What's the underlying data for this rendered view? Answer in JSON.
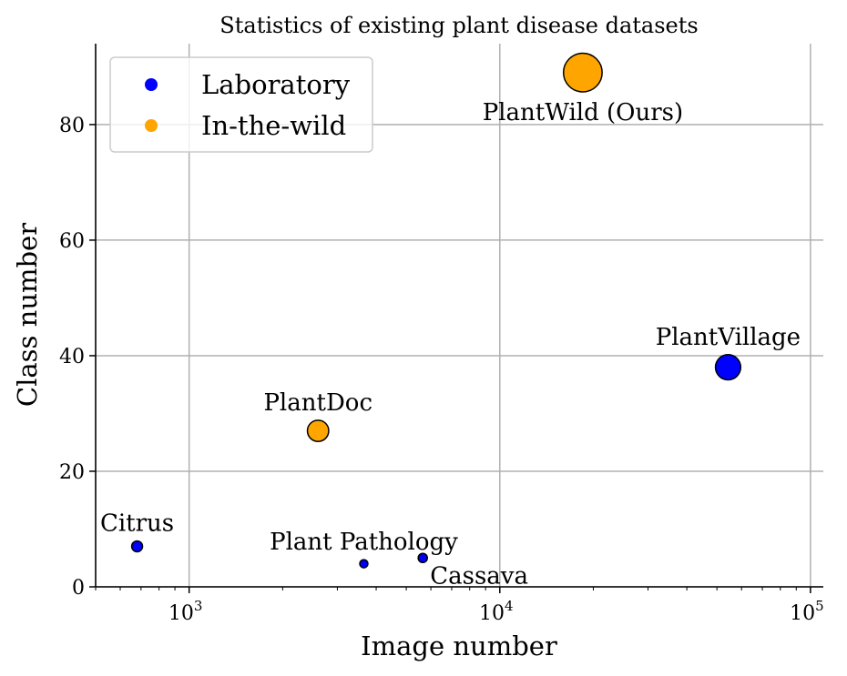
{
  "chart_data": {
    "type": "scatter",
    "title": "Statistics of existing plant disease datasets",
    "xlabel": "Image number",
    "ylabel": "Class number",
    "xscale": "log",
    "xlim": [
      500,
      110000
    ],
    "ylim": [
      0,
      94
    ],
    "xticks": [
      {
        "value": 1000,
        "base": "10",
        "exp": "3"
      },
      {
        "value": 10000,
        "base": "10",
        "exp": "4"
      },
      {
        "value": 100000,
        "base": "10",
        "exp": "5"
      }
    ],
    "yticks": [
      0,
      20,
      40,
      60,
      80
    ],
    "grid": true,
    "legend_position": "top-left",
    "series": [
      {
        "name": "Laboratory",
        "color": "#0000ff"
      },
      {
        "name": "In-the-wild",
        "color": "#ffa500"
      }
    ],
    "points": [
      {
        "label": "Citrus",
        "x": 680,
        "y": 7,
        "series": "Laboratory",
        "label_pos": "above"
      },
      {
        "label": "Plant Pathology",
        "x": 3650,
        "y": 4,
        "series": "Laboratory",
        "label_pos": "above"
      },
      {
        "label": "Cassava",
        "x": 5650,
        "y": 5,
        "series": "Laboratory",
        "label_pos": "below-right"
      },
      {
        "label": "PlantDoc",
        "x": 2600,
        "y": 27,
        "series": "In-the-wild",
        "label_pos": "above"
      },
      {
        "label": "PlantVillage",
        "x": 54300,
        "y": 38,
        "series": "Laboratory",
        "label_pos": "above"
      },
      {
        "label": "PlantWild (Ours)",
        "x": 18500,
        "y": 89,
        "series": "In-the-wild",
        "label_pos": "below"
      }
    ]
  }
}
